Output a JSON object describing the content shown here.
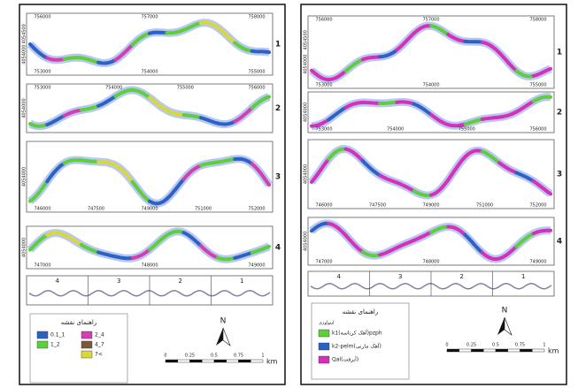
{
  "left": {
    "strips": [
      {
        "label": "1",
        "top": [
          "756000",
          "757000",
          "758000"
        ],
        "bottom": [
          "753000",
          "754000",
          "755000"
        ],
        "side": [
          "4054500",
          "4054000"
        ]
      },
      {
        "label": "2",
        "top": [
          "753000",
          "754000",
          "755000",
          "756000"
        ],
        "bottom": [],
        "side": [
          "4054000"
        ]
      },
      {
        "label": "3",
        "top": [],
        "bottom": [
          "746000",
          "747500",
          "749000",
          "751000",
          "752000"
        ],
        "side": [
          "4054000"
        ]
      },
      {
        "label": "4",
        "top": [],
        "bottom": [
          "747000",
          "748000",
          "749000"
        ],
        "side": [
          "4054000"
        ]
      }
    ],
    "overview_labels": [
      "4",
      "3",
      "2",
      "1"
    ],
    "legend": {
      "title": "راهنمای نقشه",
      "subtitle": null,
      "items": [
        {
          "label": "0.1_1",
          "color": "#2c62c6"
        },
        {
          "label": "1_2",
          "color": "#5ccf3a"
        },
        {
          "label": "2_4",
          "color": "#d23fb0"
        },
        {
          "label": "4_7",
          "color": "#7a5a3a"
        },
        {
          "label": "7<",
          "color": "#d8d83a"
        }
      ]
    },
    "north": "N",
    "scale": [
      "0",
      "0.25",
      "0.5",
      "0.75",
      "1",
      "km"
    ]
  },
  "right": {
    "strips": [
      {
        "label": "1",
        "top": [
          "756000",
          "757000",
          "758000"
        ],
        "bottom": [
          "753000",
          "754000",
          "755000"
        ],
        "side": [
          "4054500",
          "4054000"
        ]
      },
      {
        "label": "2",
        "top": [],
        "bottom": [
          "753000",
          "754000",
          "755000",
          "756000"
        ],
        "side": [
          "4054000"
        ]
      },
      {
        "label": "3",
        "top": [],
        "bottom": [
          "746000",
          "747500",
          "749000",
          "751000",
          "752000"
        ],
        "side": [
          "4054000"
        ]
      },
      {
        "label": "4",
        "top": [],
        "bottom": [
          "747000",
          "748000",
          "749000"
        ],
        "side": [
          "4054000"
        ]
      }
    ],
    "overview_labels": [
      "4",
      "3",
      "2",
      "1"
    ],
    "legend": {
      "title": "راهنمای نقشه",
      "subtitle": "لیتولوژی",
      "items": [
        {
          "label": "k1(آهک کرتاسه)pzph",
          "color": "#5ccf3a"
        },
        {
          "label": "k2-pelm(آهک مارنی)",
          "color": "#2c62c6"
        },
        {
          "label": "Qal(آبرفت)",
          "color": "#d62fb8"
        }
      ]
    },
    "north": "N",
    "scale": [
      "0",
      "0.25",
      "0.5",
      "0.75",
      "1",
      "km"
    ]
  }
}
